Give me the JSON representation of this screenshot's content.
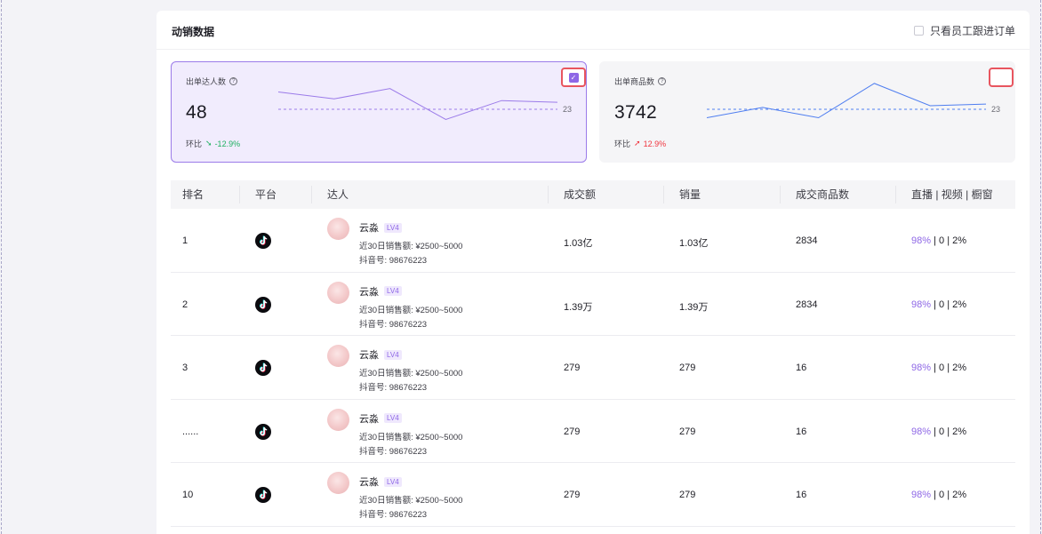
{
  "panel": {
    "title": "动销数据",
    "only_staff_label": "只看员工跟进订单"
  },
  "cards": [
    {
      "label": "出单达人数",
      "value": "48",
      "compare_label": "环比",
      "change": "-12.9%",
      "direction": "down",
      "avg_label": "23",
      "checked": true,
      "spark": [
        23,
        19,
        25,
        7,
        18,
        17
      ]
    },
    {
      "label": "出单商品数",
      "value": "3742",
      "compare_label": "环比",
      "change": "12.9%",
      "direction": "up",
      "avg_label": "23",
      "checked": false,
      "spark": [
        8,
        14,
        8,
        28,
        15,
        16
      ]
    }
  ],
  "table": {
    "headers": [
      "排名",
      "平台",
      "达人",
      "成交额",
      "销量",
      "成交商品数",
      "直播 | 视频 | 橱窗"
    ],
    "rows": [
      {
        "rank": "1",
        "name": "云淼",
        "level": "LV4",
        "sales30_label": "近30日销售额: ¥2500~5000",
        "douyin_label": "抖音号: 98676223",
        "gmv": "1.03亿",
        "volume": "1.03亿",
        "items": "2834",
        "live": "98%",
        "video": "0",
        "window": "2%"
      },
      {
        "rank": "2",
        "name": "云淼",
        "level": "LV4",
        "sales30_label": "近30日销售额: ¥2500~5000",
        "douyin_label": "抖音号: 98676223",
        "gmv": "1.39万",
        "volume": "1.39万",
        "items": "2834",
        "live": "98%",
        "video": "0",
        "window": "2%"
      },
      {
        "rank": "3",
        "name": "云淼",
        "level": "LV4",
        "sales30_label": "近30日销售额: ¥2500~5000",
        "douyin_label": "抖音号: 98676223",
        "gmv": "279",
        "volume": "279",
        "items": "16",
        "live": "98%",
        "video": "0",
        "window": "2%"
      },
      {
        "rank": "......",
        "name": "云淼",
        "level": "LV4",
        "sales30_label": "近30日销售额: ¥2500~5000",
        "douyin_label": "抖音号: 98676223",
        "gmv": "279",
        "volume": "279",
        "items": "16",
        "live": "98%",
        "video": "0",
        "window": "2%"
      },
      {
        "rank": "10",
        "name": "云淼",
        "level": "LV4",
        "sales30_label": "近30日销售额: ¥2500~5000",
        "douyin_label": "抖音号: 98676223",
        "gmv": "279",
        "volume": "279",
        "items": "16",
        "live": "98%",
        "video": "0",
        "window": "2%"
      }
    ]
  },
  "colors": {
    "accent": "#8e67e6",
    "accent_line": "#9b7be9",
    "blue_line": "#4f7ef0",
    "down": "#1fb060",
    "up": "#f0363f",
    "highlight_border": "#e8555f"
  },
  "icons": {
    "platform": "tiktok-icon",
    "help": "question-circle-icon",
    "checkbox": "checkbox-icon"
  }
}
